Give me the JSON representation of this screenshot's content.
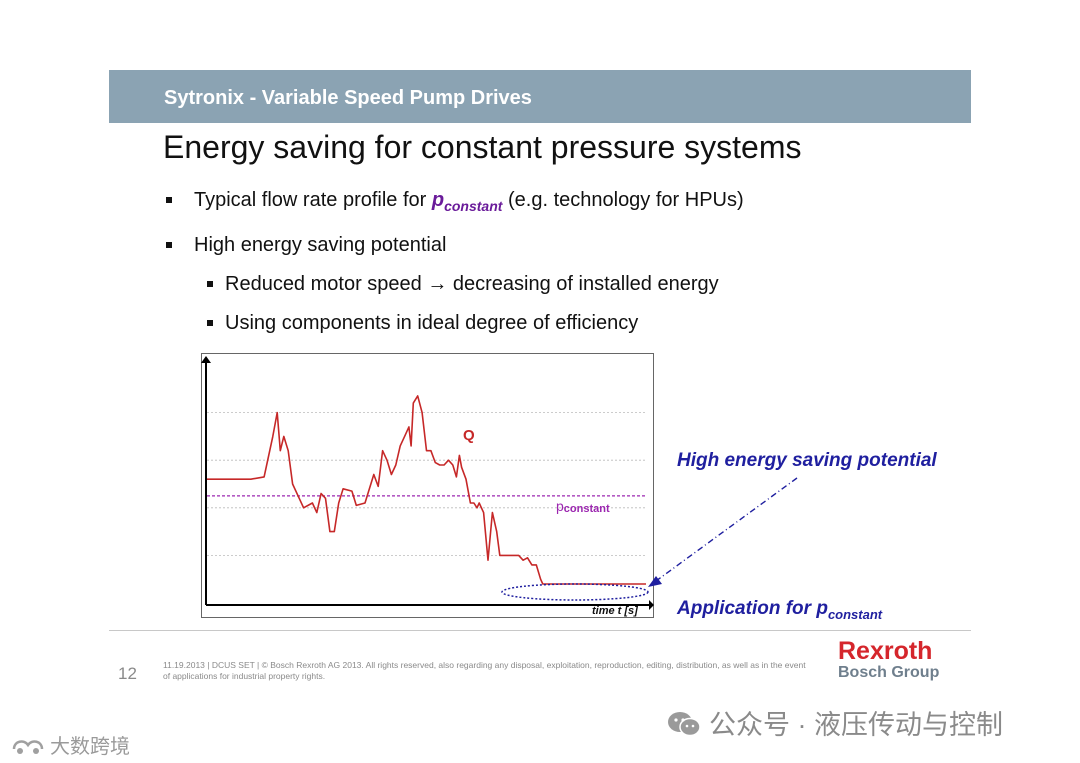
{
  "header": {
    "title": "Sytronix - Variable Speed Pump Drives"
  },
  "slide": {
    "title": "Energy saving for constant pressure systems",
    "bullets": [
      {
        "prefix": "Typical flow rate profile for ",
        "p": "p",
        "sub": "constant",
        "suffix": " (e.g. technology for HPUs)"
      },
      {
        "text": "High energy saving potential"
      }
    ],
    "subbullets": [
      {
        "text": "Reduced motor speed → decreasing of installed energy"
      },
      {
        "text": "Using components in ideal degree of efficiency"
      }
    ]
  },
  "chart_data": {
    "type": "line",
    "title": "",
    "xlabel": "time t [s]",
    "ylabel": "",
    "grid": true,
    "series": [
      {
        "name": "Q",
        "color": "#c62828",
        "points": [
          [
            0,
            52
          ],
          [
            0.3,
            52
          ],
          [
            5,
            52
          ],
          [
            10,
            52
          ],
          [
            13,
            53
          ],
          [
            15,
            70
          ],
          [
            16,
            80
          ],
          [
            16.7,
            64
          ],
          [
            17.5,
            70
          ],
          [
            18.5,
            64
          ],
          [
            19.5,
            50
          ],
          [
            21,
            44
          ],
          [
            22,
            40
          ],
          [
            24,
            42
          ],
          [
            25,
            38
          ],
          [
            26,
            46
          ],
          [
            27,
            44
          ],
          [
            28,
            30
          ],
          [
            29,
            30
          ],
          [
            30,
            42
          ],
          [
            31,
            48
          ],
          [
            33,
            47
          ],
          [
            34,
            41
          ],
          [
            36,
            42
          ],
          [
            38,
            54
          ],
          [
            39,
            49
          ],
          [
            40,
            64
          ],
          [
            41,
            60
          ],
          [
            42,
            54
          ],
          [
            43,
            58
          ],
          [
            44,
            66
          ],
          [
            45,
            70
          ],
          [
            46,
            74
          ],
          [
            46.5,
            66
          ],
          [
            47,
            84
          ],
          [
            48,
            87
          ],
          [
            49,
            80
          ],
          [
            50,
            64
          ],
          [
            51,
            64
          ],
          [
            52,
            59
          ],
          [
            53,
            58
          ],
          [
            54,
            58
          ],
          [
            55,
            60
          ],
          [
            56,
            58
          ],
          [
            56.8,
            53
          ],
          [
            57.5,
            62
          ],
          [
            58,
            57
          ],
          [
            59,
            52
          ],
          [
            60,
            42
          ],
          [
            60.8,
            42
          ],
          [
            61.5,
            40
          ],
          [
            62,
            42
          ],
          [
            63,
            38
          ],
          [
            64,
            18
          ],
          [
            65,
            38
          ],
          [
            66,
            30
          ],
          [
            66.7,
            20
          ],
          [
            67.5,
            20
          ],
          [
            68,
            20
          ],
          [
            71,
            20
          ],
          [
            72,
            18
          ],
          [
            73,
            19
          ],
          [
            74,
            16
          ],
          [
            75,
            16
          ],
          [
            76,
            10
          ],
          [
            76.5,
            8
          ],
          [
            100,
            8
          ]
        ]
      },
      {
        "name": "p",
        "sub": "constant",
        "color": "#9c27b0",
        "style": "dashed",
        "points": [
          [
            0,
            45
          ],
          [
            100,
            45
          ]
        ]
      }
    ],
    "xlim": [
      0,
      100
    ],
    "ylim": [
      0,
      100
    ],
    "annotations": [
      "Q",
      "p",
      "constant",
      "time t [s]"
    ]
  },
  "callouts": {
    "high_energy": "High energy saving potential",
    "application_prefix": "Application for ",
    "application_p": "p",
    "application_sub": "constant"
  },
  "footer": {
    "page_number": "12",
    "legal": "11.19.2013 | DCUS SET | © Bosch Rexroth AG 2013. All rights reserved, also regarding any disposal, exploitation, reproduction, editing, distribution, as well as in the event of applications for industrial property rights.",
    "logo_brand": "Rexroth",
    "logo_group": "Bosch Group"
  },
  "watermarks": {
    "right": "公众号 · 液压传动与控制",
    "left": "大数跨境"
  }
}
